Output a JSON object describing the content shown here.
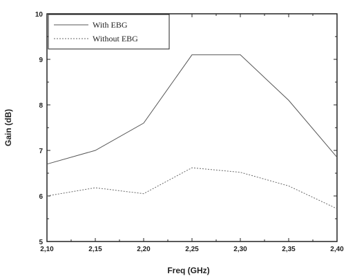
{
  "chart_data": {
    "type": "line",
    "xlabel": "Freq (GHz)",
    "ylabel": "Gain (dB)",
    "x": [
      "2,10",
      "2,15",
      "2,20",
      "2,25",
      "2,30",
      "2,35",
      "2,40"
    ],
    "x_values": [
      2.1,
      2.15,
      2.2,
      2.25,
      2.3,
      2.35,
      2.4
    ],
    "xlim": [
      2.1,
      2.4
    ],
    "ylim": [
      5,
      10
    ],
    "y_ticks": [
      "5",
      "6",
      "7",
      "8",
      "9",
      "10"
    ],
    "legend_position": "top-left",
    "grid": false,
    "series": [
      {
        "name": "With EBG",
        "style": "solid",
        "color": "#555555",
        "points": [
          [
            2.1,
            6.7
          ],
          [
            2.15,
            7.0
          ],
          [
            2.2,
            7.6
          ],
          [
            2.25,
            9.1
          ],
          [
            2.3,
            9.1
          ],
          [
            2.35,
            8.1
          ],
          [
            2.4,
            6.85
          ]
        ]
      },
      {
        "name": "Without EBG",
        "style": "dotted",
        "color": "#666666",
        "points": [
          [
            2.1,
            6.0
          ],
          [
            2.15,
            6.18
          ],
          [
            2.2,
            6.05
          ],
          [
            2.25,
            6.62
          ],
          [
            2.3,
            6.52
          ],
          [
            2.35,
            6.22
          ],
          [
            2.4,
            5.72
          ]
        ]
      }
    ]
  }
}
